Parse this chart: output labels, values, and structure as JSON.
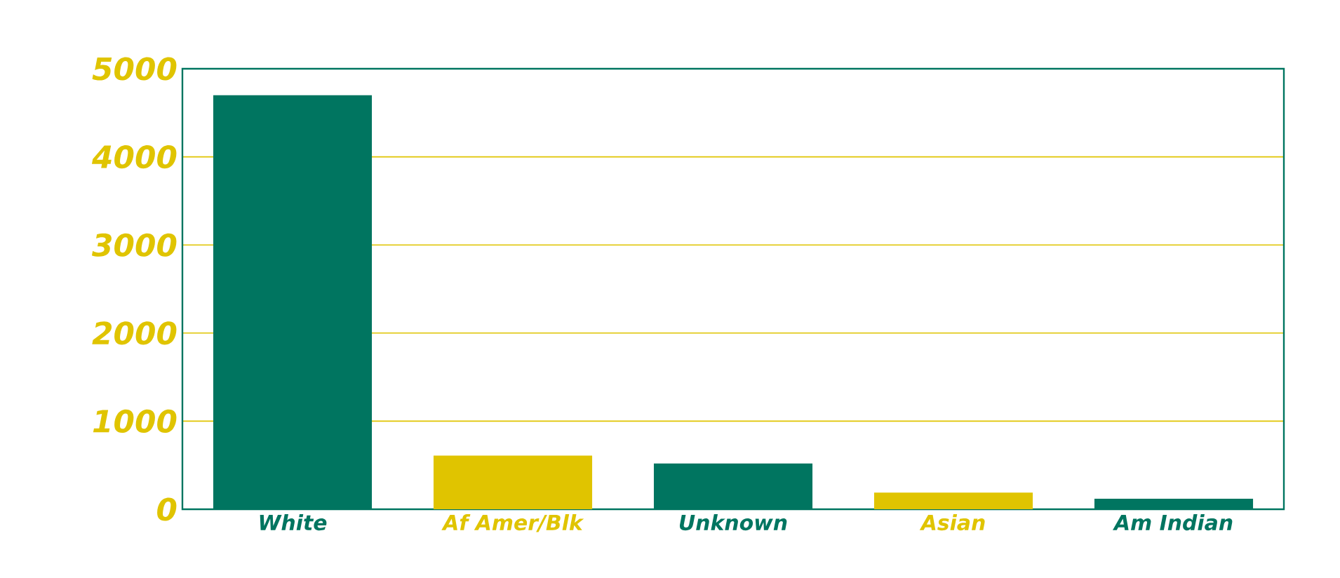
{
  "chart_data": {
    "type": "bar",
    "categories": [
      "White",
      "Af Amer/Blk",
      "Unknown",
      "Asian",
      "Am Indian"
    ],
    "values": [
      4700,
      610,
      520,
      190,
      120
    ],
    "colors": [
      "#007560",
      "#e0c400",
      "#007560",
      "#e0c400",
      "#007560"
    ],
    "ylim": [
      0,
      5000
    ],
    "yticks": [
      0,
      1000,
      2000,
      3000,
      4000,
      5000
    ],
    "grid": "y"
  }
}
